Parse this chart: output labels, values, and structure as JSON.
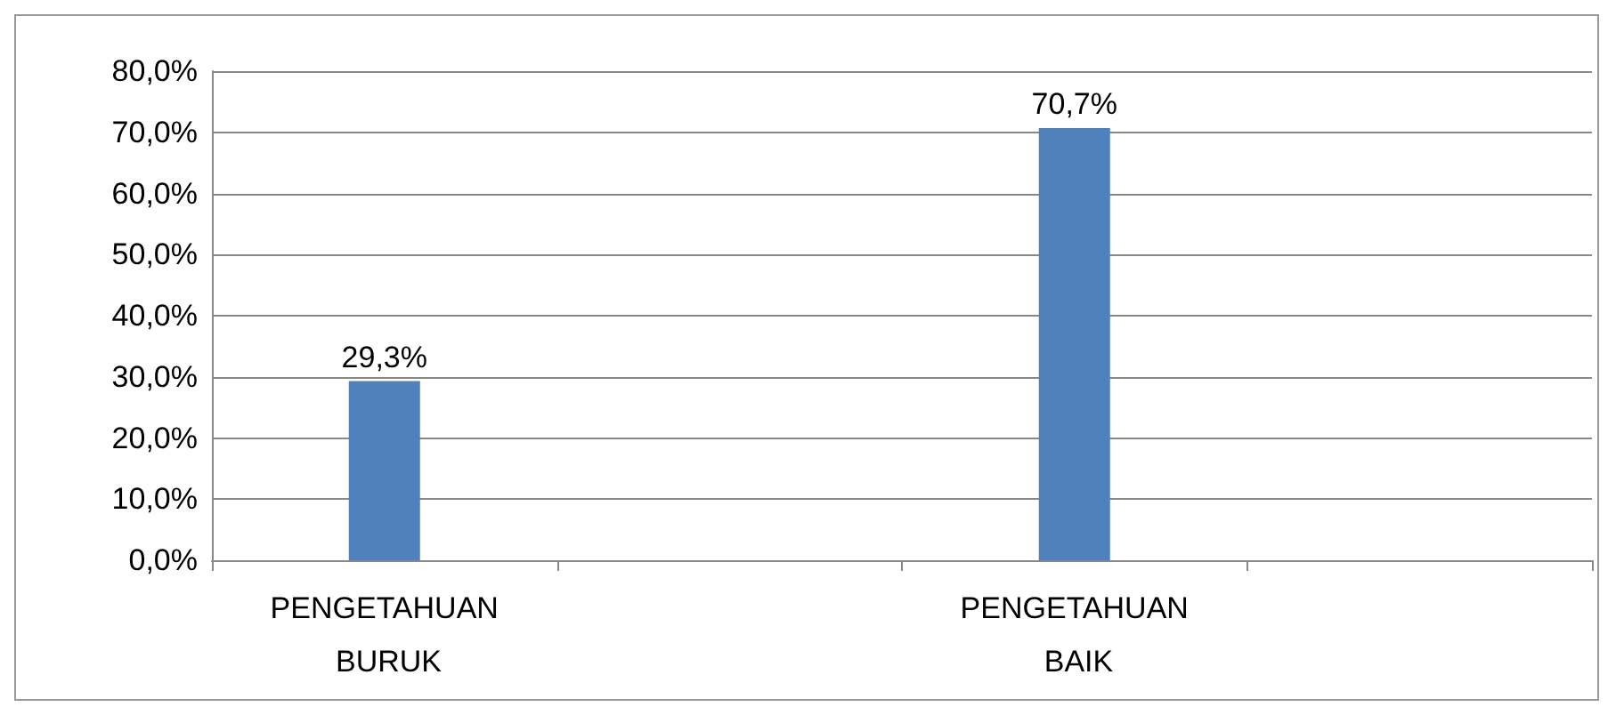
{
  "chart_data": {
    "type": "bar",
    "categories": [
      "PENGETAHUAN BURUK",
      null,
      "PENGETAHUAN BAIK",
      null
    ],
    "values": [
      29.3,
      null,
      70.7,
      null
    ],
    "value_labels": [
      "29,3%",
      null,
      "70,7%",
      null
    ],
    "color": "#4f81bd",
    "ylim": [
      0,
      80
    ],
    "yticks": [
      {
        "value": 0,
        "label": "0,0%"
      },
      {
        "value": 10,
        "label": "10,0%"
      },
      {
        "value": 20,
        "label": "20,0%"
      },
      {
        "value": 30,
        "label": "30,0%"
      },
      {
        "value": 40,
        "label": "40,0%"
      },
      {
        "value": 50,
        "label": "50,0%"
      },
      {
        "value": 60,
        "label": "60,0%"
      },
      {
        "value": 70,
        "label": "70,0%"
      },
      {
        "value": 80,
        "label": "80,0%"
      }
    ],
    "grid": "y"
  }
}
